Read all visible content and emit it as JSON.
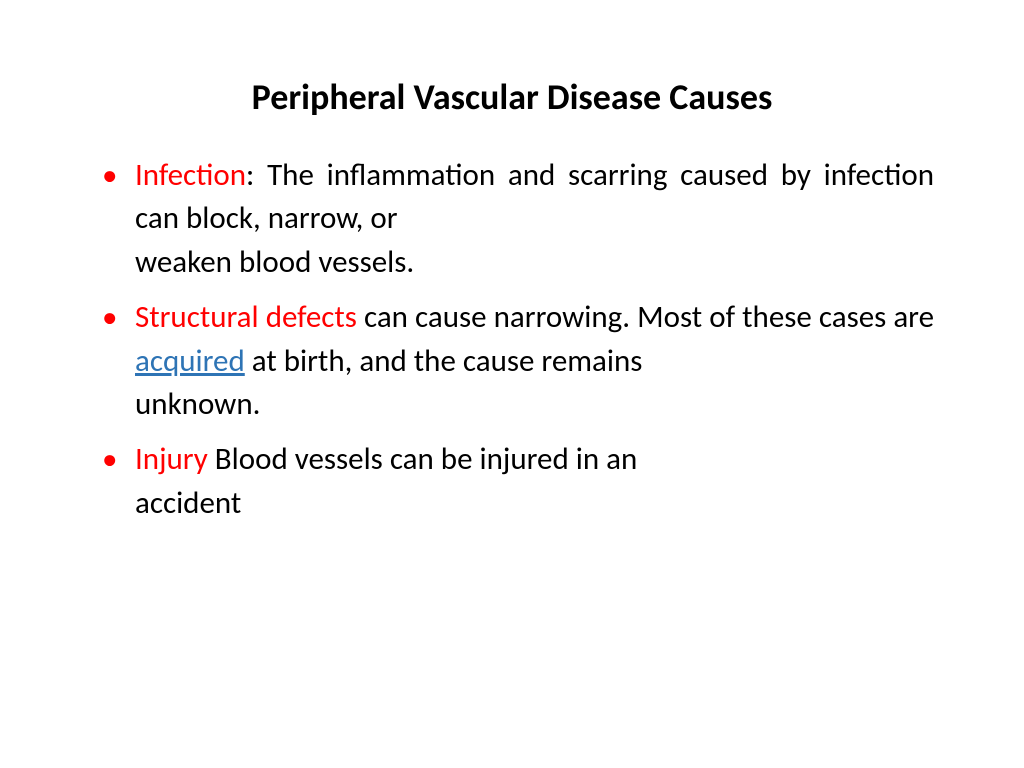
{
  "title": "Peripheral Vascular Disease Causes",
  "bullets": [
    {
      "term": "Infection",
      "line1": ": The inflammation and scarring caused by infection can block, narrow, or",
      "line2": "weaken blood vessels."
    },
    {
      "term": "Structural defects",
      "mid1": " can cause narrowing. Most of these cases are ",
      "link": "acquired",
      "mid2": " at birth, and the cause remains",
      "line2": "unknown."
    },
    {
      "term": "Injury",
      "line1": " Blood vessels can be injured in an",
      "line2": "accident"
    }
  ],
  "colors": {
    "term_red": "#ff0000",
    "link_blue": "#2e74b5",
    "text_black": "#000000",
    "background": "#ffffff"
  },
  "typography": {
    "title_fontsize": 36,
    "title_weight": "bold",
    "body_fontsize": 31,
    "font_family": "Calibri"
  }
}
